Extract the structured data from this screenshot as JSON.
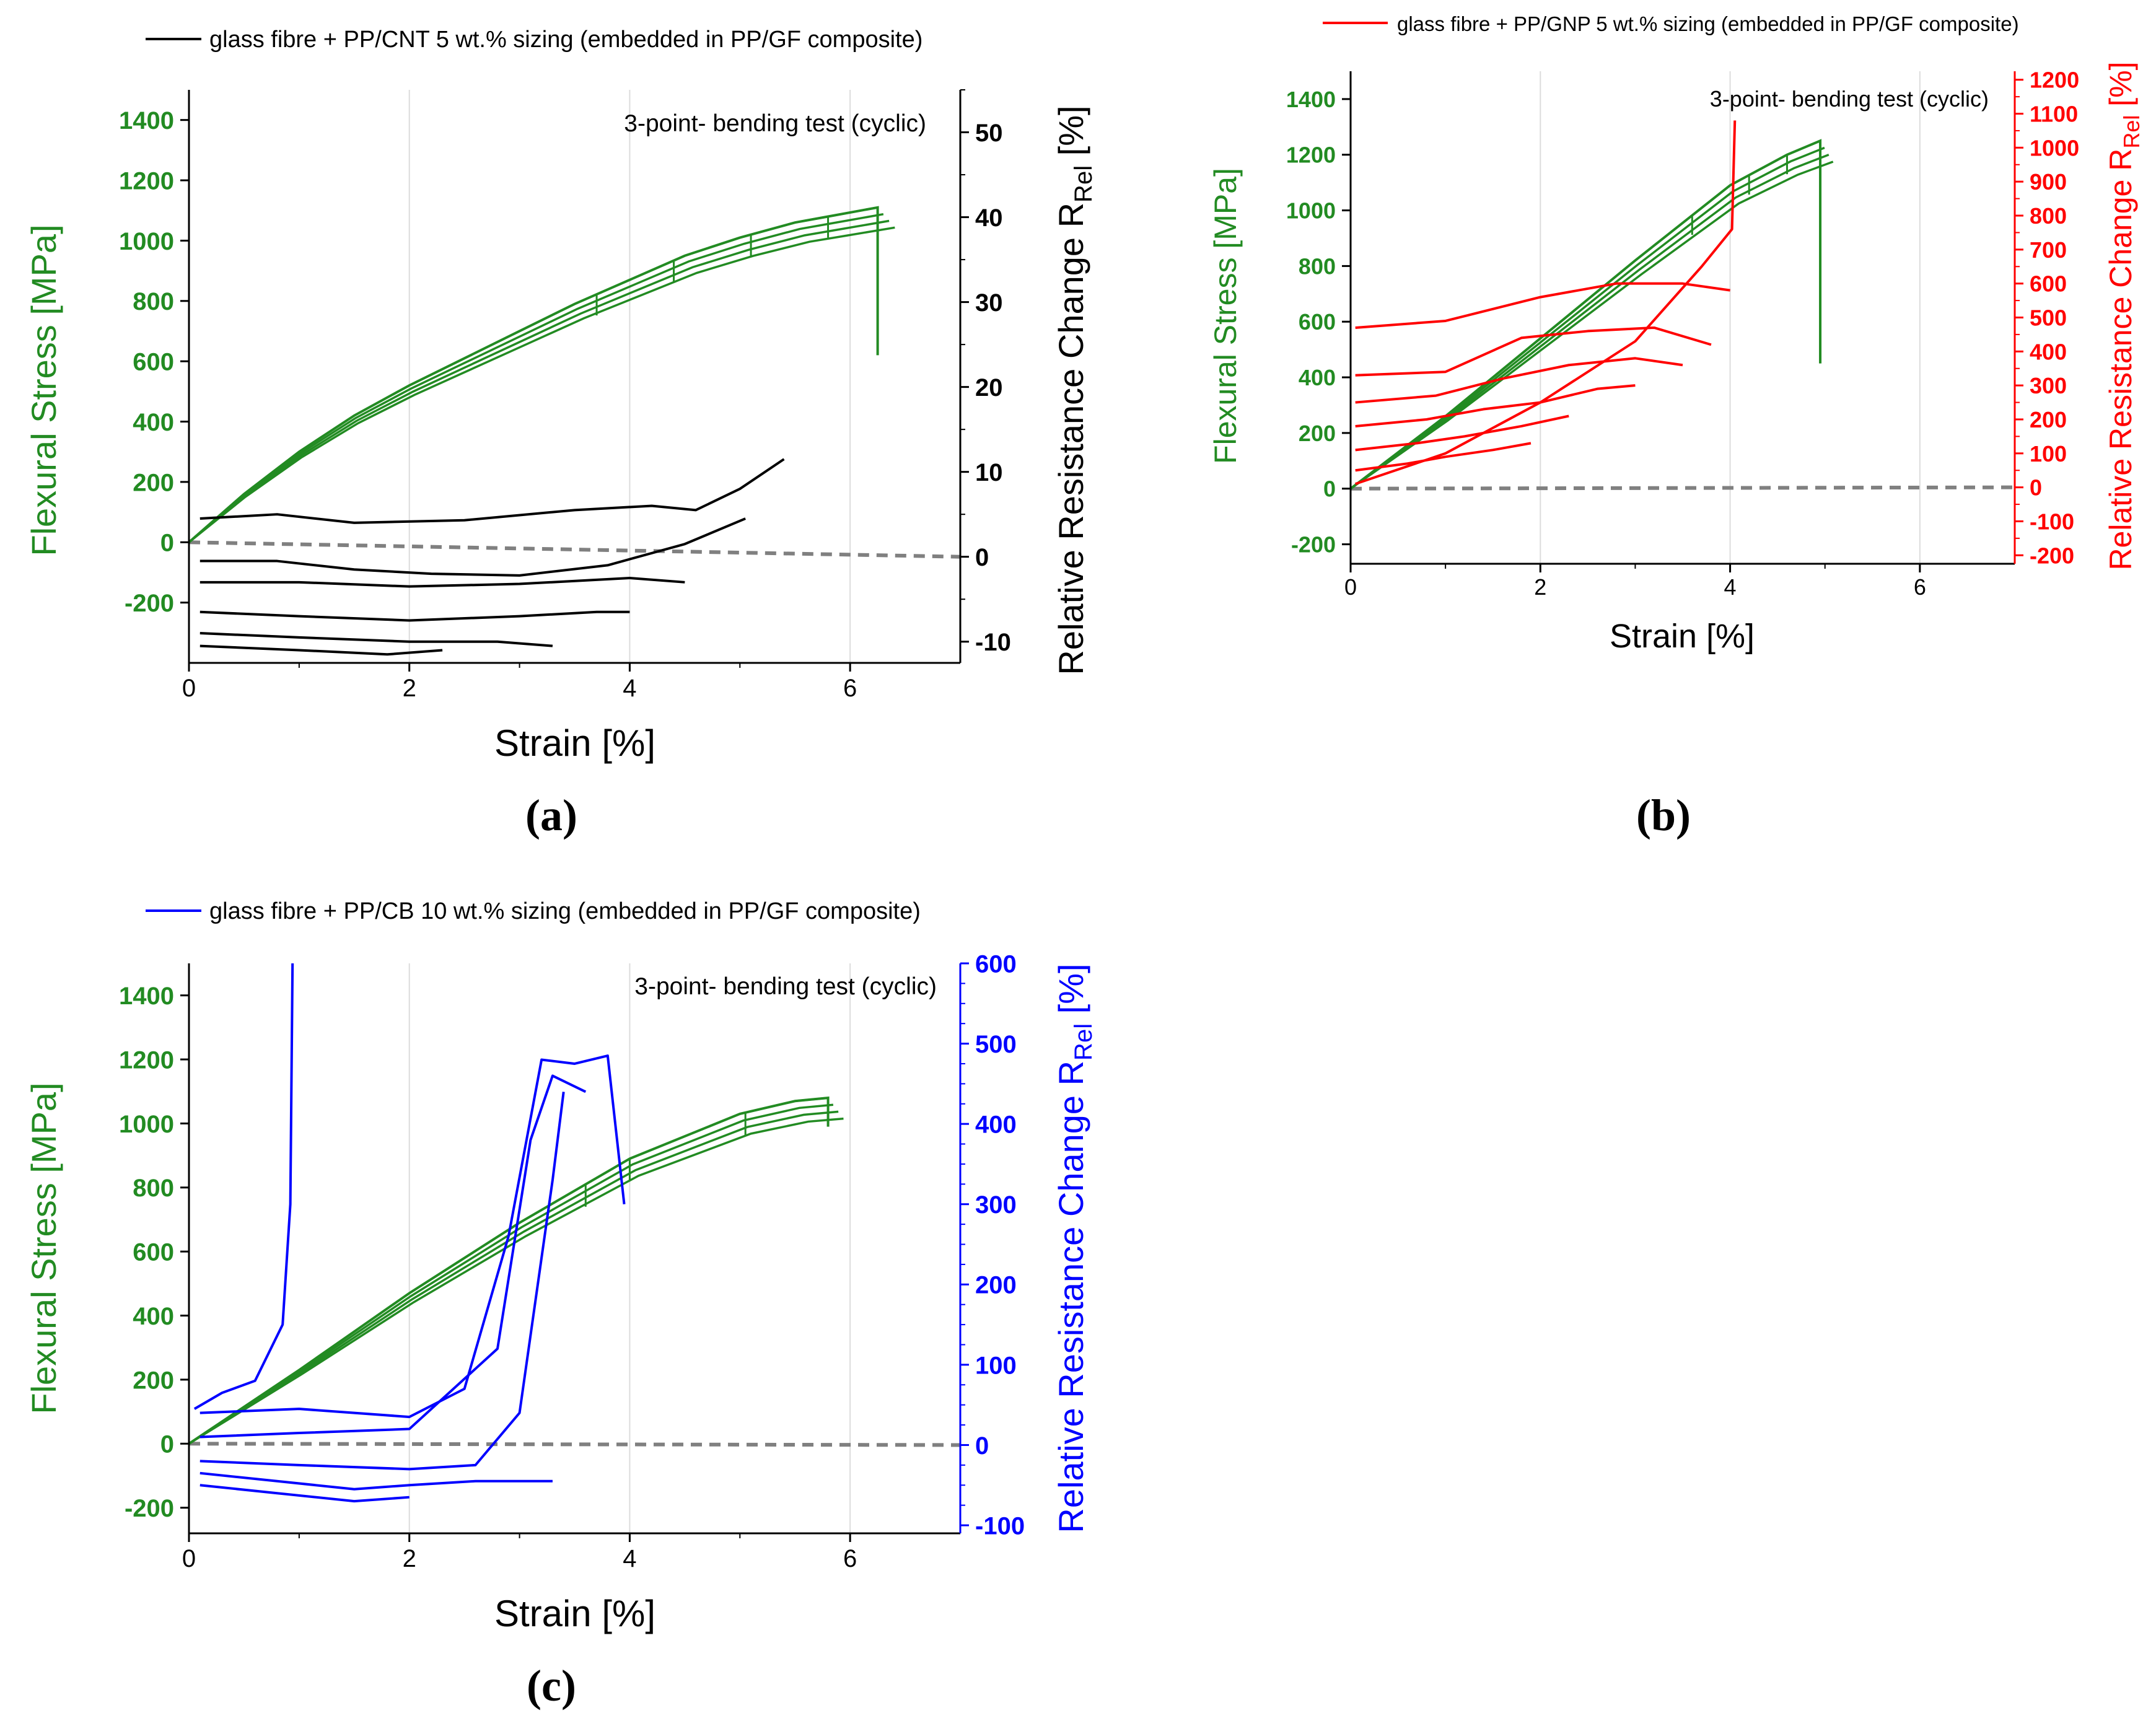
{
  "colors": {
    "stress": "#228B22",
    "cnt": "#000000",
    "gnp": "#ff0000",
    "cb": "#0000ff",
    "zero_line": "#808080"
  },
  "chart_data": [
    {
      "id": "a",
      "type": "line",
      "caption": "(a)",
      "legend": "glass fibre + PP/CNT 5 wt.% sizing (embedded in PP/GF composite)",
      "annotation": "3-point- bending test (cyclic)",
      "xlabel": "Strain [%]",
      "ylabel_left": "Flexural Stress [MPa]",
      "ylabel_right": "Relative Resistance Change R",
      "ylabel_right_sub": "Rel",
      "ylabel_right_unit": " [%]",
      "xlim": [
        0,
        7
      ],
      "ylim_left": [
        -400,
        1500
      ],
      "ylim_right": [
        -12.5,
        55
      ],
      "xticks": [
        "0",
        "2",
        "4",
        "6"
      ],
      "xtick_values": [
        0,
        2,
        4,
        6
      ],
      "yticks_left": [
        "-200",
        "0",
        "200",
        "400",
        "600",
        "800",
        "1000",
        "1200",
        "1400"
      ],
      "ytick_left_values": [
        -200,
        0,
        200,
        400,
        600,
        800,
        1000,
        1200,
        1400
      ],
      "yticks_right": [
        "-10",
        "0",
        "10",
        "20",
        "30",
        "40",
        "50"
      ],
      "ytick_right_values": [
        -10,
        0,
        10,
        20,
        30,
        40,
        50
      ],
      "stress_envelope": {
        "strain": [
          0,
          0.5,
          1,
          1.5,
          2,
          2.5,
          3,
          3.5,
          4,
          4.5,
          5,
          5.5,
          5.8,
          6.25,
          6.25
        ],
        "stress": [
          0,
          160,
          300,
          420,
          520,
          610,
          700,
          790,
          870,
          950,
          1010,
          1060,
          1080,
          1110,
          620
        ]
      },
      "stress_unloads": [
        3.7,
        4.4,
        5.1,
        5.8
      ],
      "resistance_series": [
        {
          "name": "loop1",
          "strain": [
            0.1,
            0.8,
            1.5,
            2.5,
            3.5,
            4.2,
            4.6,
            5.0,
            5.4
          ],
          "resistance": [
            4.5,
            5.0,
            4.0,
            4.3,
            5.5,
            6.0,
            5.5,
            8.0,
            11.5
          ]
        },
        {
          "name": "loop2",
          "strain": [
            0.1,
            0.8,
            1.5,
            2.2,
            3.0,
            3.8,
            4.5,
            5.05
          ],
          "resistance": [
            -0.5,
            -0.5,
            -1.5,
            -2.0,
            -2.2,
            -1.0,
            1.5,
            4.5
          ]
        },
        {
          "name": "loop3",
          "strain": [
            0.1,
            1.0,
            2.0,
            3.0,
            4.0,
            4.5
          ],
          "resistance": [
            -3.0,
            -3.0,
            -3.5,
            -3.2,
            -2.5,
            -3.0
          ]
        },
        {
          "name": "loop4",
          "strain": [
            0.1,
            1.0,
            2.0,
            3.0,
            3.7,
            4.0
          ],
          "resistance": [
            -6.5,
            -7.0,
            -7.5,
            -7.0,
            -6.5,
            -6.5
          ]
        },
        {
          "name": "loop5",
          "strain": [
            0.1,
            1.0,
            2.0,
            2.8,
            3.3
          ],
          "resistance": [
            -9.0,
            -9.5,
            -10.0,
            -10.0,
            -10.5
          ]
        },
        {
          "name": "loop6",
          "strain": [
            0.1,
            1.0,
            1.8,
            2.3
          ],
          "resistance": [
            -10.5,
            -11.0,
            -11.5,
            -11.0
          ]
        }
      ]
    },
    {
      "id": "b",
      "type": "line",
      "caption": "(b)",
      "legend": "glass fibre + PP/GNP 5 wt.% sizing (embedded in PP/GF composite)",
      "annotation": "3-point- bending test (cyclic)",
      "xlabel": "Strain [%]",
      "ylabel_left": "Flexural Stress [MPa]",
      "ylabel_right": "Relative Resistance Change R",
      "ylabel_right_sub": "Rel",
      "ylabel_right_unit": " [%]",
      "xlim": [
        0,
        7
      ],
      "ylim_left": [
        -270,
        1500
      ],
      "ylim_right": [
        -225,
        1225
      ],
      "xticks": [
        "0",
        "2",
        "4",
        "6"
      ],
      "xtick_values": [
        0,
        2,
        4,
        6
      ],
      "yticks_left": [
        "-200",
        "0",
        "200",
        "400",
        "600",
        "800",
        "1000",
        "1200",
        "1400"
      ],
      "ytick_left_values": [
        -200,
        0,
        200,
        400,
        600,
        800,
        1000,
        1200,
        1400
      ],
      "yticks_right": [
        "-200",
        "-100",
        "0",
        "100",
        "200",
        "300",
        "400",
        "500",
        "600",
        "700",
        "800",
        "900",
        "1000",
        "1100",
        "1200"
      ],
      "ytick_right_values": [
        -200,
        -100,
        0,
        100,
        200,
        300,
        400,
        500,
        600,
        700,
        800,
        900,
        1000,
        1100,
        1200
      ],
      "stress_envelope": {
        "strain": [
          0,
          1,
          2,
          3,
          4,
          4.6,
          4.95,
          4.95
        ],
        "stress": [
          0,
          260,
          540,
          820,
          1090,
          1200,
          1250,
          450
        ]
      },
      "stress_unloads": [
        3.6,
        4.2,
        4.6
      ],
      "resistance_series": [
        {
          "name": "loop1",
          "strain": [
            0.05,
            1,
            2,
            3,
            3.7,
            4.02,
            4.05
          ],
          "resistance": [
            10,
            100,
            250,
            430,
            650,
            760,
            1080
          ]
        },
        {
          "name": "loop2",
          "strain": [
            0.05,
            1,
            2,
            2.8,
            3.5,
            4.0
          ],
          "resistance": [
            470,
            490,
            560,
            600,
            600,
            580
          ]
        },
        {
          "name": "loop3",
          "strain": [
            0.05,
            1,
            1.8,
            2.5,
            3.2,
            3.8
          ],
          "resistance": [
            330,
            340,
            440,
            460,
            470,
            420
          ]
        },
        {
          "name": "loop4",
          "strain": [
            0.05,
            0.9,
            1.6,
            2.3,
            3.0,
            3.5
          ],
          "resistance": [
            250,
            270,
            320,
            360,
            380,
            360
          ]
        },
        {
          "name": "loop5",
          "strain": [
            0.05,
            0.8,
            1.4,
            2.0,
            2.6,
            3.0
          ],
          "resistance": [
            180,
            200,
            230,
            250,
            290,
            300
          ]
        },
        {
          "name": "loop6",
          "strain": [
            0.05,
            0.7,
            1.2,
            1.8,
            2.3
          ],
          "resistance": [
            110,
            130,
            150,
            180,
            210
          ]
        },
        {
          "name": "loop7",
          "strain": [
            0.05,
            0.6,
            1.0,
            1.5,
            1.9
          ],
          "resistance": [
            50,
            70,
            90,
            110,
            130
          ]
        }
      ]
    },
    {
      "id": "c",
      "type": "line",
      "caption": "(c)",
      "legend": "glass fibre + PP/CB 10 wt.% sizing (embedded in PP/GF composite)",
      "annotation": "3-point- bending test (cyclic)",
      "xlabel": "Strain [%]",
      "ylabel_left": "Flexural Stress [MPa]",
      "ylabel_right": "Relative Resistance Change R",
      "ylabel_right_sub": "Rel",
      "ylabel_right_unit": " [%]",
      "xlim": [
        0,
        7
      ],
      "ylim_left": [
        -280,
        1500
      ],
      "ylim_right": [
        -110,
        600
      ],
      "xticks": [
        "0",
        "2",
        "4",
        "6"
      ],
      "xtick_values": [
        0,
        2,
        4,
        6
      ],
      "yticks_left": [
        "-200",
        "0",
        "200",
        "400",
        "600",
        "800",
        "1000",
        "1200",
        "1400"
      ],
      "ytick_left_values": [
        -200,
        0,
        200,
        400,
        600,
        800,
        1000,
        1200,
        1400
      ],
      "yticks_right": [
        "-100",
        "0",
        "100",
        "200",
        "300",
        "400",
        "500",
        "600"
      ],
      "ytick_right_values": [
        -100,
        0,
        100,
        200,
        300,
        400,
        500,
        600
      ],
      "stress_envelope": {
        "strain": [
          0,
          1,
          2,
          3,
          4,
          5,
          5.5,
          5.8,
          5.8
        ],
        "stress": [
          0,
          230,
          470,
          690,
          890,
          1030,
          1070,
          1080,
          990
        ]
      },
      "stress_unloads": [
        3.6,
        4.0,
        5.05
      ],
      "resistance_series": [
        {
          "name": "spike",
          "strain": [
            0.05,
            0.3,
            0.6,
            0.85,
            0.92,
            0.94
          ],
          "resistance": [
            45,
            65,
            80,
            150,
            300,
            600
          ]
        },
        {
          "name": "loop1",
          "strain": [
            0.1,
            1.0,
            2.0,
            2.5,
            2.9,
            3.2,
            3.5,
            3.8,
            3.95
          ],
          "resistance": [
            40,
            45,
            35,
            70,
            260,
            480,
            475,
            485,
            300
          ]
        },
        {
          "name": "loop2",
          "strain": [
            0.1,
            1.0,
            2.0,
            2.8,
            3.1,
            3.3,
            3.6
          ],
          "resistance": [
            10,
            15,
            20,
            120,
            380,
            460,
            440
          ]
        },
        {
          "name": "loop3",
          "strain": [
            0.1,
            1.0,
            2.0,
            2.6,
            3.0,
            3.3,
            3.4
          ],
          "resistance": [
            -20,
            -25,
            -30,
            -25,
            40,
            330,
            440
          ]
        },
        {
          "name": "loop4",
          "strain": [
            0.1,
            0.8,
            1.5,
            2.0,
            2.6,
            3.3
          ],
          "resistance": [
            -35,
            -45,
            -55,
            -50,
            -45,
            -45
          ]
        },
        {
          "name": "loop5",
          "strain": [
            0.1,
            0.8,
            1.5,
            2.0
          ],
          "resistance": [
            -50,
            -60,
            -70,
            -65
          ]
        }
      ]
    }
  ]
}
